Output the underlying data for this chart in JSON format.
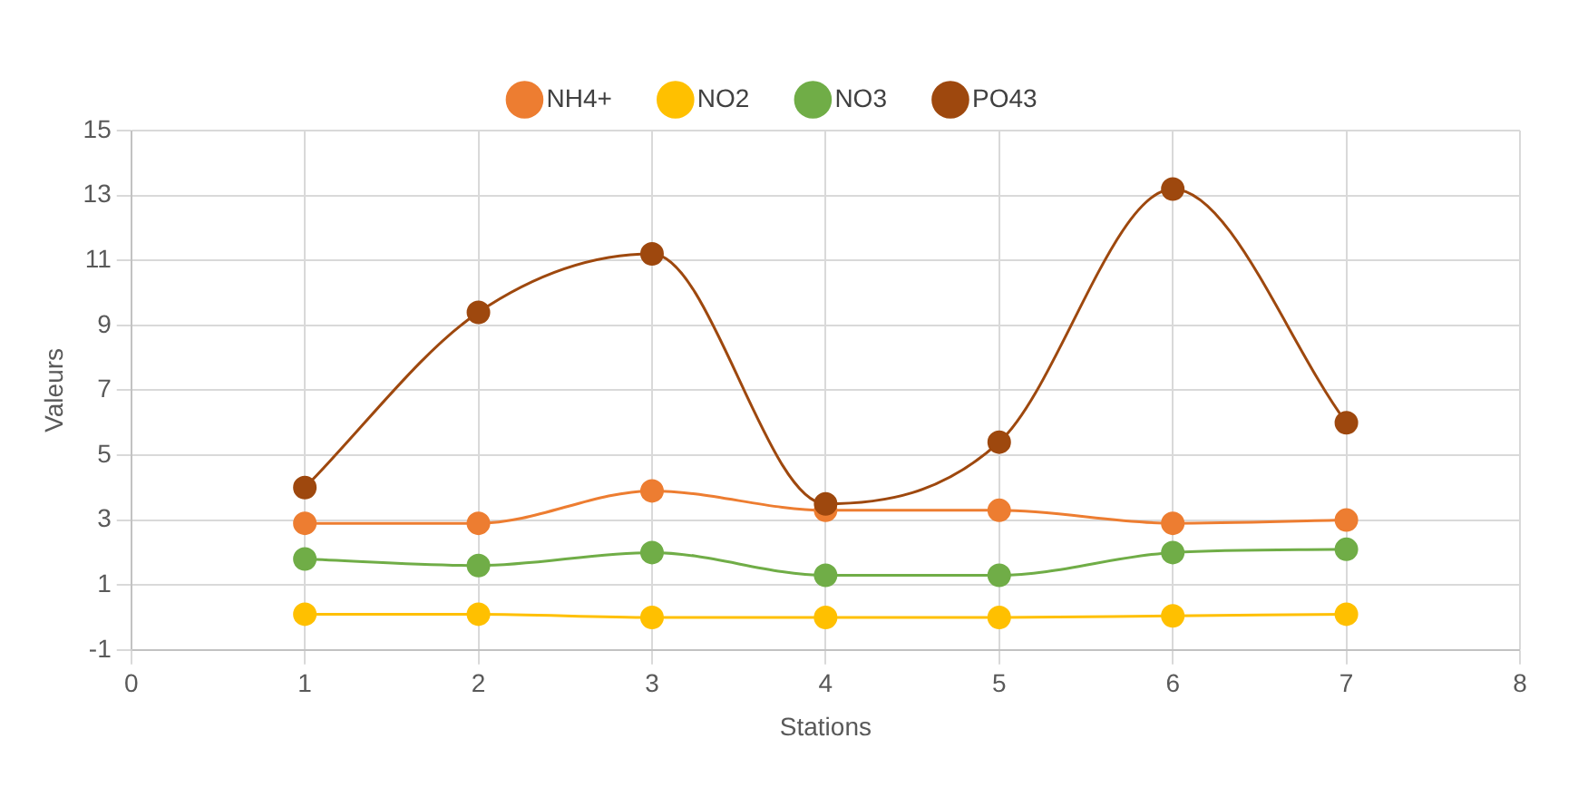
{
  "chart_data": {
    "type": "line",
    "xlabel": "Stations",
    "ylabel": "Valeurs",
    "x": [
      1,
      2,
      3,
      4,
      5,
      6,
      7
    ],
    "series": [
      {
        "name": "NH4+",
        "color": "#ed7d31",
        "values": [
          2.9,
          2.9,
          3.9,
          3.3,
          3.3,
          2.9,
          3.0
        ]
      },
      {
        "name": "NO2",
        "color": "#ffc000",
        "values": [
          0.1,
          0.1,
          0.0,
          0.0,
          0.0,
          0.05,
          0.1
        ]
      },
      {
        "name": "NO3",
        "color": "#70ad47",
        "values": [
          1.8,
          1.6,
          2.0,
          1.3,
          1.3,
          2.0,
          2.1
        ]
      },
      {
        "name": "PO43",
        "color": "#9e480e",
        "values": [
          4.0,
          9.4,
          11.2,
          3.5,
          5.4,
          13.2,
          6.0
        ]
      }
    ],
    "xlim": [
      0,
      8
    ],
    "xticks": [
      0,
      1,
      2,
      3,
      4,
      5,
      6,
      7,
      8
    ],
    "ylim": [
      -1,
      15
    ],
    "yticks": [
      -1,
      1,
      3,
      5,
      7,
      9,
      11,
      13,
      15
    ],
    "grid": true,
    "legend": "top",
    "marker": "circle",
    "line_style": "solid"
  }
}
